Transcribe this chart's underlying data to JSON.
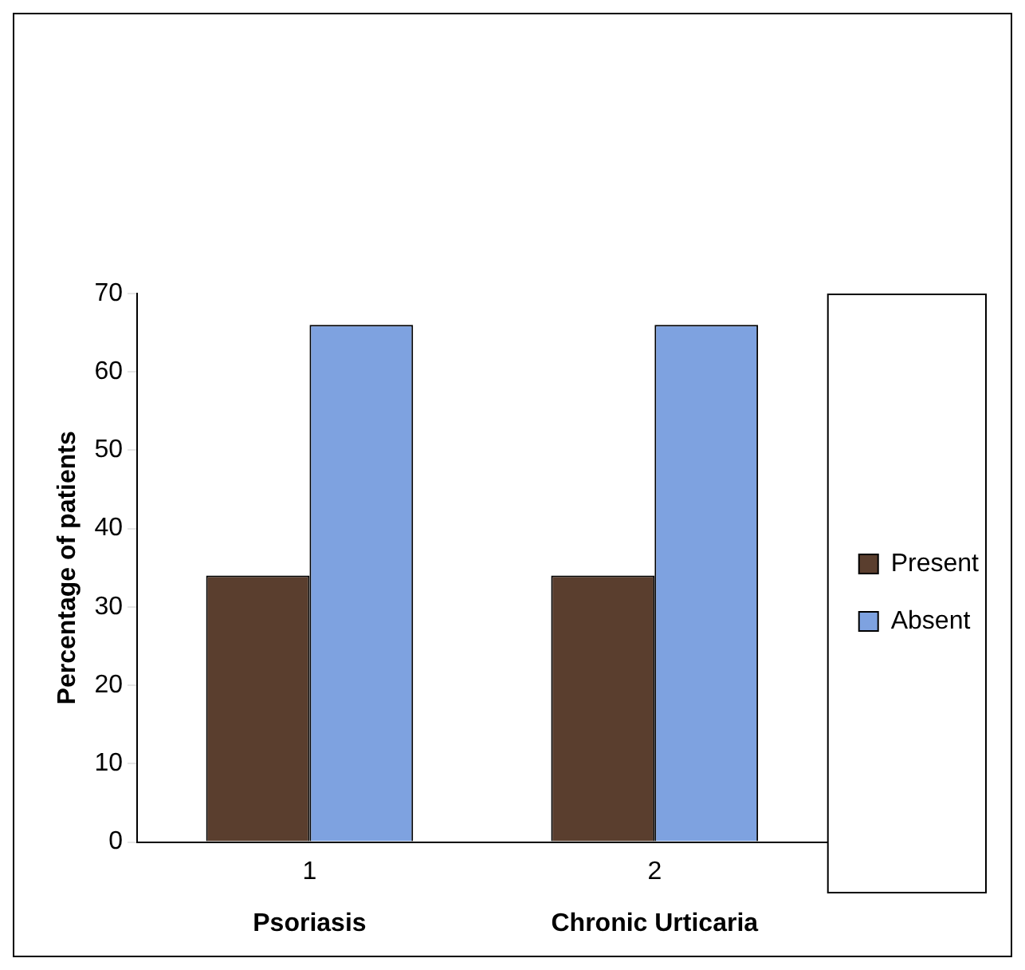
{
  "chart_data": {
    "type": "bar",
    "ylabel": "Percentage of patients",
    "categories": [
      "1",
      "2"
    ],
    "series": [
      {
        "name": "Present",
        "color": "#5a3e2e",
        "values": [
          34,
          34
        ]
      },
      {
        "name": "Absent",
        "color": "#7ea2e0",
        "values": [
          66,
          66
        ]
      }
    ],
    "ylim": [
      0,
      70
    ],
    "yticks": [
      0,
      10,
      20,
      30,
      40,
      50,
      60,
      70
    ],
    "grid": false,
    "legend": "right",
    "annotations": [
      "Psoriasis",
      "Chronic Urticaria"
    ]
  }
}
